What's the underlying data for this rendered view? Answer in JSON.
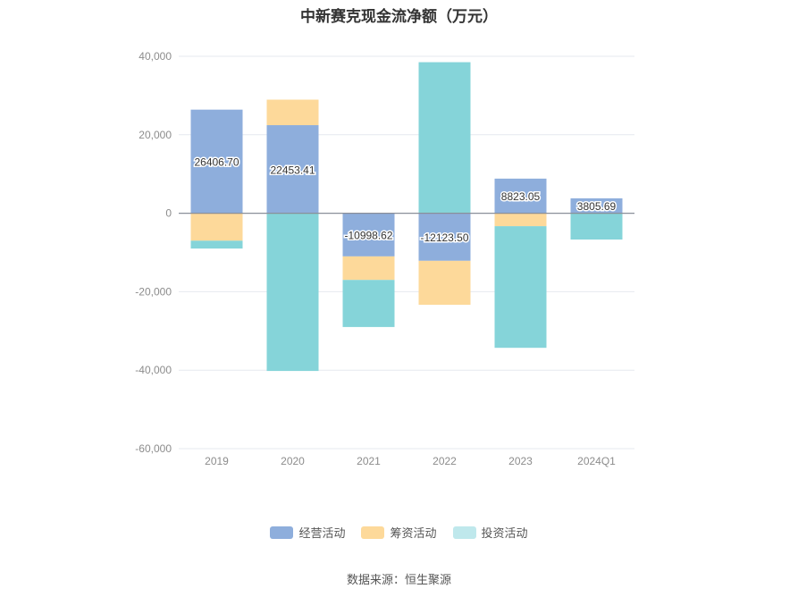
{
  "title": "中新赛克现金流净额（万元）",
  "source": "数据来源：恒生聚源",
  "colors": {
    "operating": "#8eaedc",
    "financing": "#fdd99a",
    "investing": "#85d4d9",
    "grid": "#e6e9ef",
    "zero_line": "#8a8f99",
    "tick_text": "#8c8c8c",
    "label_text": "#333333"
  },
  "chart_data": {
    "type": "bar",
    "stacked": true,
    "categories": [
      "2019",
      "2020",
      "2021",
      "2022",
      "2023",
      "2024Q1"
    ],
    "series": [
      {
        "name": "经营活动",
        "color_key": "operating",
        "values": [
          26406.7,
          22453.41,
          -10998.62,
          -12123.5,
          8823.05,
          3805.69
        ]
      },
      {
        "name": "筹资活动",
        "color_key": "financing",
        "values": [
          -7000,
          6500,
          -6000,
          -11200,
          -3300,
          0
        ]
      },
      {
        "name": "投资活动",
        "color_key": "investing",
        "values": [
          -2000,
          -40200,
          -12000,
          38500,
          -31000,
          -6700
        ]
      }
    ],
    "data_labels": [
      "26406.70",
      "22453.41",
      "-10998.62",
      "-12123.50",
      "8823.05",
      "3805.69"
    ],
    "ylim": [
      -60000,
      40000
    ],
    "yticks": [
      40000,
      20000,
      0,
      -20000,
      -40000,
      -60000
    ],
    "ytick_labels": [
      "40,000",
      "20,000",
      "0",
      "-20,000",
      "-40,000",
      "-60,000"
    ],
    "grid": true,
    "legend_position": "bottom"
  }
}
